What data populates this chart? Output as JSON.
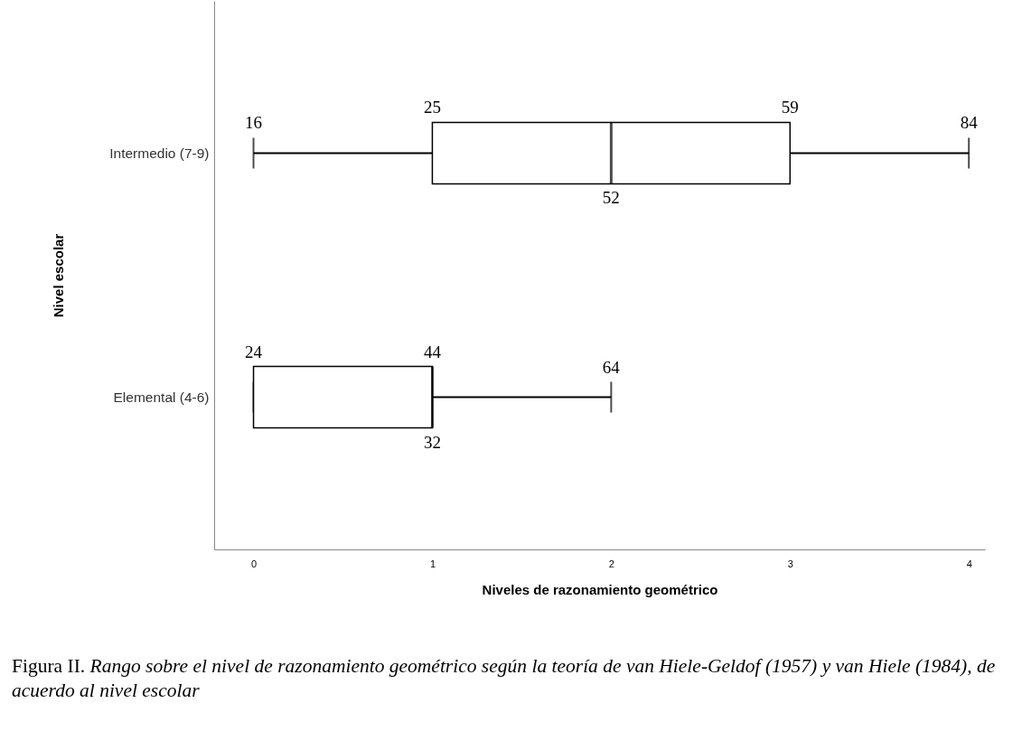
{
  "chart_data": {
    "type": "box",
    "orientation": "horizontal",
    "xlabel": "Niveles de razonamiento geométrico",
    "ylabel": "Nivel escolar",
    "categories": [
      "Intermedio (7-9)",
      "Elemental (4-6)"
    ],
    "boxes": [
      {
        "low": 0,
        "q1": 1,
        "median": 2,
        "q3": 3,
        "high": 4
      },
      {
        "low": 0,
        "q1": 0,
        "median": 1,
        "q3": 1,
        "high": 2
      }
    ],
    "xlim": [
      -0.22,
      4.09
    ],
    "xticks": [
      0,
      1,
      2,
      3,
      4
    ],
    "annotations": [
      {
        "text": "16",
        "x": 0,
        "y": "Intermedio (7-9)"
      },
      {
        "text": "25",
        "x": 1,
        "y": "Intermedio (7-9)"
      },
      {
        "text": "59",
        "x": 3,
        "y": "Intermedio (7-9)"
      },
      {
        "text": "84",
        "x": 4,
        "y": "Intermedio (7-9)"
      },
      {
        "text": "52",
        "x": 2,
        "y": "Intermedio (7-9)"
      },
      {
        "text": "24",
        "x": 0,
        "y": "Elemental (4-6)"
      },
      {
        "text": "44",
        "x": 1,
        "y": "Elemental (4-6)"
      },
      {
        "text": "64",
        "x": 2,
        "y": "Elemental (4-6)"
      },
      {
        "text": "32",
        "x": 1,
        "y": "Elemental (4-6)"
      },
      "Figura II. Rango sobre el nivel de razonamiento geométrico según la teoría de van Hiele-Geldof (1957) y van Hiele (1984), de acuerdo al nivel escolar"
    ]
  }
}
